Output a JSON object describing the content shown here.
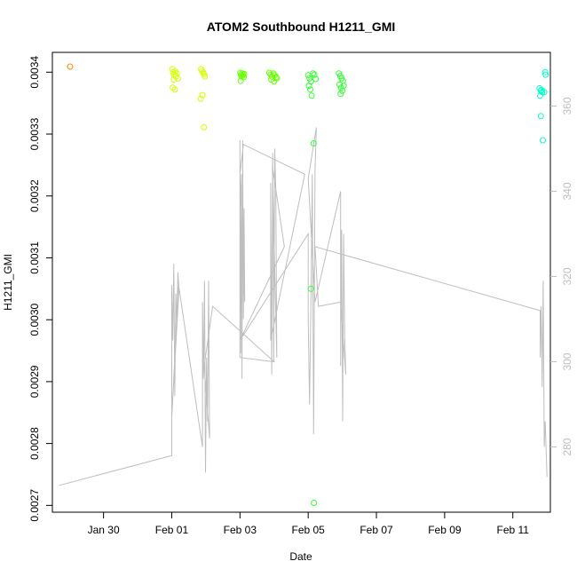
{
  "chart_data": {
    "type": "scatter",
    "title": "ATOM2 Southbound H1211_GMI",
    "xlabel": "Date",
    "ylabel": "H1211_GMI",
    "x_ticks": [
      "Jan 30",
      "Feb 01",
      "Feb 03",
      "Feb 05",
      "Feb 07",
      "Feb 09",
      "Feb 11"
    ],
    "x_tick_days": [
      30,
      32,
      34,
      36,
      38,
      40,
      42
    ],
    "xlim": [
      28.5,
      43.1
    ],
    "y_ticks": [
      "0.0027",
      "0.0028",
      "0.0029",
      "0.0030",
      "0.0031",
      "0.0032",
      "0.0033",
      "0.0034"
    ],
    "y_tick_values": [
      0.0027,
      0.0028,
      0.0029,
      0.003,
      0.0031,
      0.0032,
      0.0033,
      0.0034
    ],
    "ylim": [
      0.002689,
      0.003432
    ],
    "y2_ticks": [
      "280",
      "300",
      "320",
      "340",
      "360"
    ],
    "y2_tick_values": [
      280,
      300,
      320,
      340,
      360
    ],
    "y2lim": [
      264.7,
      372.6
    ],
    "grid": false,
    "points": [
      {
        "x": 29.02,
        "y": 0.003409,
        "color": "#ff8c00"
      },
      {
        "x": 32.02,
        "y": 0.003405,
        "color": "#d4ff00"
      },
      {
        "x": 32.04,
        "y": 0.0034,
        "color": "#d4ff00"
      },
      {
        "x": 32.07,
        "y": 0.003396,
        "color": "#d4ff00"
      },
      {
        "x": 32.1,
        "y": 0.003401,
        "color": "#d4ff00"
      },
      {
        "x": 32.12,
        "y": 0.003393,
        "color": "#d4ff00"
      },
      {
        "x": 32.06,
        "y": 0.003388,
        "color": "#d4ff00"
      },
      {
        "x": 32.18,
        "y": 0.00339,
        "color": "#d4ff00"
      },
      {
        "x": 32.03,
        "y": 0.003375,
        "color": "#d4ff00"
      },
      {
        "x": 32.09,
        "y": 0.003372,
        "color": "#d4ff00"
      },
      {
        "x": 32.15,
        "y": 0.003398,
        "color": "#d4ff00"
      },
      {
        "x": 32.86,
        "y": 0.003405,
        "color": "#d4ff00"
      },
      {
        "x": 32.89,
        "y": 0.003402,
        "color": "#d4ff00"
      },
      {
        "x": 32.92,
        "y": 0.003399,
        "color": "#d4ff00"
      },
      {
        "x": 32.95,
        "y": 0.003397,
        "color": "#d4ff00"
      },
      {
        "x": 32.97,
        "y": 0.003393,
        "color": "#d4ff00"
      },
      {
        "x": 32.9,
        "y": 0.003363,
        "color": "#d4ff00"
      },
      {
        "x": 32.85,
        "y": 0.003357,
        "color": "#d4ff00"
      },
      {
        "x": 32.94,
        "y": 0.003311,
        "color": "#d4ff00"
      },
      {
        "x": 34.01,
        "y": 0.003399,
        "color": "#66ff00"
      },
      {
        "x": 34.03,
        "y": 0.003396,
        "color": "#66ff00"
      },
      {
        "x": 34.05,
        "y": 0.003393,
        "color": "#66ff00"
      },
      {
        "x": 34.07,
        "y": 0.003398,
        "color": "#66ff00"
      },
      {
        "x": 34.09,
        "y": 0.003395,
        "color": "#66ff00"
      },
      {
        "x": 34.11,
        "y": 0.003392,
        "color": "#66ff00"
      },
      {
        "x": 34.02,
        "y": 0.003386,
        "color": "#66ff00"
      },
      {
        "x": 34.12,
        "y": 0.003397,
        "color": "#66ff00"
      },
      {
        "x": 34.86,
        "y": 0.003399,
        "color": "#66ff00"
      },
      {
        "x": 34.9,
        "y": 0.003396,
        "color": "#66ff00"
      },
      {
        "x": 34.94,
        "y": 0.003393,
        "color": "#66ff00"
      },
      {
        "x": 34.98,
        "y": 0.003398,
        "color": "#66ff00"
      },
      {
        "x": 35.02,
        "y": 0.003395,
        "color": "#66ff00"
      },
      {
        "x": 35.06,
        "y": 0.003392,
        "color": "#66ff00"
      },
      {
        "x": 34.92,
        "y": 0.003388,
        "color": "#66ff00"
      },
      {
        "x": 35.0,
        "y": 0.003385,
        "color": "#66ff00"
      },
      {
        "x": 35.08,
        "y": 0.00339,
        "color": "#66ff00"
      },
      {
        "x": 36.0,
        "y": 0.003395,
        "color": "#33ff33"
      },
      {
        "x": 36.04,
        "y": 0.00339,
        "color": "#33ff33"
      },
      {
        "x": 36.08,
        "y": 0.003385,
        "color": "#33ff33"
      },
      {
        "x": 36.02,
        "y": 0.003378,
        "color": "#33ff33"
      },
      {
        "x": 36.06,
        "y": 0.003372,
        "color": "#33ff33"
      },
      {
        "x": 36.1,
        "y": 0.003362,
        "color": "#33ff33"
      },
      {
        "x": 36.14,
        "y": 0.003398,
        "color": "#33ff33"
      },
      {
        "x": 36.18,
        "y": 0.003396,
        "color": "#33ff33"
      },
      {
        "x": 36.22,
        "y": 0.003389,
        "color": "#33ff33"
      },
      {
        "x": 36.16,
        "y": 0.003285,
        "color": "#33ff33"
      },
      {
        "x": 36.08,
        "y": 0.00305,
        "color": "#33ff33"
      },
      {
        "x": 36.17,
        "y": 0.002704,
        "color": "#33ff33"
      },
      {
        "x": 36.9,
        "y": 0.003398,
        "color": "#33ff33"
      },
      {
        "x": 36.94,
        "y": 0.003394,
        "color": "#33ff33"
      },
      {
        "x": 36.98,
        "y": 0.00339,
        "color": "#33ff33"
      },
      {
        "x": 37.02,
        "y": 0.003386,
        "color": "#33ff33"
      },
      {
        "x": 36.92,
        "y": 0.00338,
        "color": "#33ff33"
      },
      {
        "x": 36.96,
        "y": 0.003375,
        "color": "#33ff33"
      },
      {
        "x": 37.0,
        "y": 0.00337,
        "color": "#33ff33"
      },
      {
        "x": 36.95,
        "y": 0.003365,
        "color": "#33ff33"
      },
      {
        "x": 37.04,
        "y": 0.003378,
        "color": "#33ff33"
      },
      {
        "x": 42.78,
        "y": 0.003374,
        "color": "#00ffc8"
      },
      {
        "x": 42.82,
        "y": 0.00337,
        "color": "#00ffc8"
      },
      {
        "x": 42.86,
        "y": 0.003368,
        "color": "#00ffc8"
      },
      {
        "x": 42.8,
        "y": 0.003362,
        "color": "#00ffc8"
      },
      {
        "x": 42.84,
        "y": 0.003371,
        "color": "#00ffc8"
      },
      {
        "x": 42.92,
        "y": 0.003368,
        "color": "#00ffc8"
      },
      {
        "x": 42.95,
        "y": 0.0034,
        "color": "#00ffc8"
      },
      {
        "x": 42.96,
        "y": 0.003396,
        "color": "#00ffc8"
      },
      {
        "x": 42.82,
        "y": 0.003329,
        "color": "#00ffc8"
      },
      {
        "x": 42.88,
        "y": 0.00329,
        "color": "#00ffc8"
      }
    ],
    "line_series": {
      "axis": "right",
      "color": "#bebebe",
      "x": [
        28.7,
        32.0,
        32.0,
        32.03,
        32.06,
        32.09,
        32.12,
        32.15,
        32.18,
        32.21,
        32.0,
        32.2,
        32.9,
        32.9,
        32.93,
        32.96,
        32.99,
        33.02,
        33.05,
        33.08,
        33.11,
        32.95,
        33.2,
        35.0,
        34.0,
        34.0,
        34.02,
        34.04,
        34.06,
        34.08,
        34.1,
        34.12,
        34.14,
        34.0,
        34.1,
        35.9,
        34.9,
        34.9,
        34.93,
        34.96,
        34.99,
        35.02,
        35.05,
        35.08,
        34.95,
        35.3,
        34.0,
        36.0,
        36.0,
        36.04,
        36.08,
        36.12,
        36.16,
        36.2,
        36.24,
        36.0,
        36.2,
        36.95,
        36.95,
        36.98,
        37.01,
        37.04,
        37.07,
        37.1,
        36.95,
        36.3,
        36.2,
        42.8,
        42.8,
        42.83,
        42.86,
        42.89,
        42.92,
        42.95,
        43.0
      ],
      "y": [
        271,
        278,
        318,
        305,
        323,
        292,
        316,
        309,
        321,
        317,
        287,
        318,
        280,
        314,
        296,
        319,
        274,
        301,
        286,
        319,
        282,
        299,
        313,
        300,
        301,
        352,
        302,
        344,
        296,
        352,
        310,
        336,
        314,
        344,
        351,
        344,
        305,
        342,
        297,
        349,
        300,
        350,
        340,
        301,
        346,
        327,
        305,
        330,
        310,
        290,
        314,
        344,
        283,
        345,
        355,
        343,
        314,
        340,
        299,
        331,
        286,
        330,
        306,
        297,
        314,
        313,
        327,
        312,
        301,
        313,
        294,
        319,
        280,
        286,
        273
      ]
    }
  }
}
